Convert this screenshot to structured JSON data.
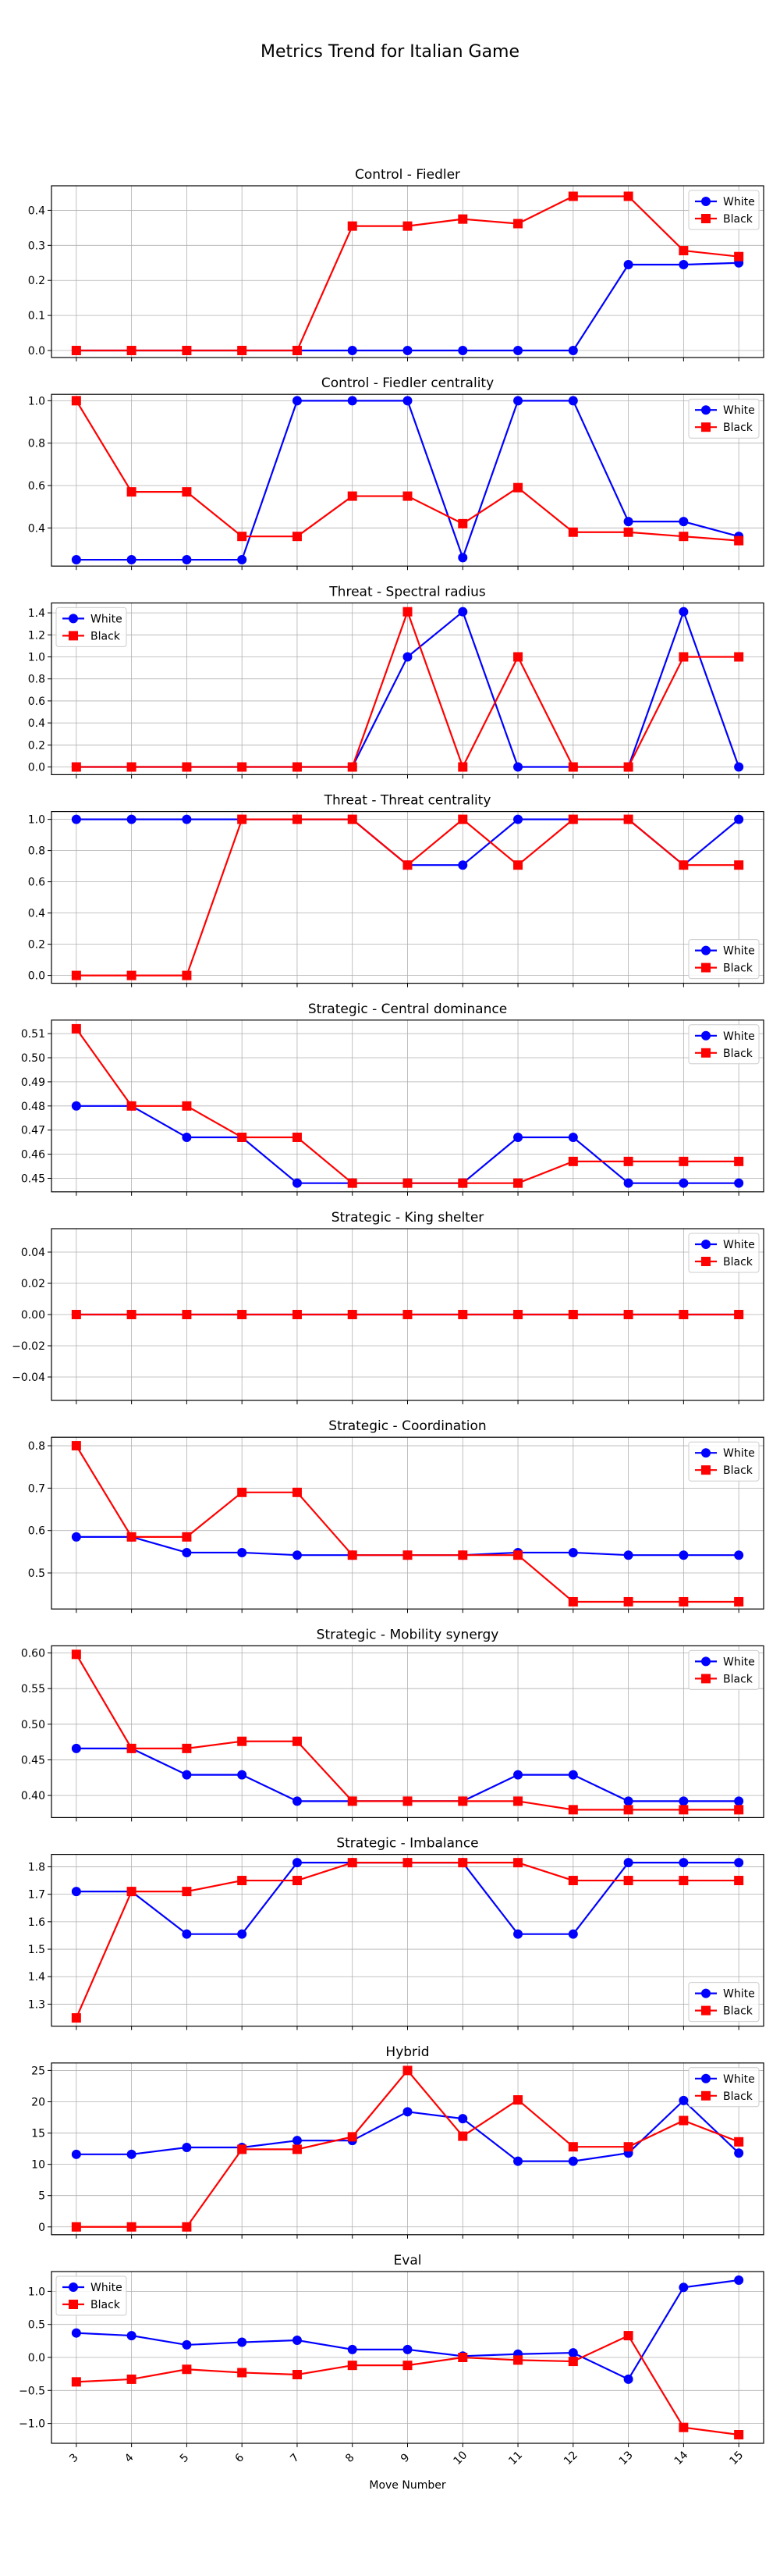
{
  "figure": {
    "title": "Metrics Trend for Italian Game",
    "xlabel": "Move Number"
  },
  "colors": {
    "White": "#0000ff",
    "Black": "#ff0000"
  },
  "x": [
    3,
    4,
    5,
    6,
    7,
    8,
    9,
    10,
    11,
    12,
    13,
    14,
    15
  ],
  "chart_data": [
    {
      "type": "line",
      "title": "Control - Fiedler",
      "grid": true,
      "legend": "upper-right",
      "ylim": [
        -0.02,
        0.47
      ],
      "yticks": [
        0.0,
        0.1,
        0.2,
        0.3,
        0.4
      ],
      "ytick_labels": [
        "0.0",
        "0.1",
        "0.2",
        "0.3",
        "0.4"
      ],
      "series": [
        {
          "name": "White",
          "marker": "circle",
          "values": [
            0,
            0,
            0,
            0,
            0,
            0,
            0,
            0,
            0,
            0,
            0.245,
            0.245,
            0.25
          ]
        },
        {
          "name": "Black",
          "marker": "square",
          "values": [
            0,
            0,
            0,
            0,
            0,
            0.355,
            0.355,
            0.375,
            0.362,
            0.44,
            0.44,
            0.285,
            0.268
          ]
        }
      ]
    },
    {
      "type": "line",
      "title": "Control - Fiedler centrality",
      "grid": true,
      "legend": "upper-right",
      "ylim": [
        0.22,
        1.03
      ],
      "yticks": [
        0.4,
        0.6,
        0.8,
        1.0
      ],
      "ytick_labels": [
        "0.4",
        "0.6",
        "0.8",
        "1.0"
      ],
      "series": [
        {
          "name": "White",
          "marker": "circle",
          "values": [
            0.25,
            0.25,
            0.25,
            0.25,
            1.0,
            1.0,
            1.0,
            0.26,
            1.0,
            1.0,
            0.43,
            0.43,
            0.36
          ]
        },
        {
          "name": "Black",
          "marker": "square",
          "values": [
            1.0,
            0.57,
            0.57,
            0.36,
            0.36,
            0.55,
            0.55,
            0.42,
            0.59,
            0.38,
            0.38,
            0.36,
            0.34
          ]
        }
      ]
    },
    {
      "type": "line",
      "title": "Threat - Spectral radius",
      "grid": true,
      "legend": "upper-left",
      "ylim": [
        -0.07,
        1.49
      ],
      "yticks": [
        0.0,
        0.2,
        0.4,
        0.6,
        0.8,
        1.0,
        1.2,
        1.4
      ],
      "ytick_labels": [
        "0.0",
        "0.2",
        "0.4",
        "0.6",
        "0.8",
        "1.0",
        "1.2",
        "1.4"
      ],
      "series": [
        {
          "name": "White",
          "marker": "circle",
          "values": [
            0,
            0,
            0,
            0,
            0,
            0,
            1.0,
            1.41,
            0,
            0,
            0,
            1.41,
            0
          ]
        },
        {
          "name": "Black",
          "marker": "square",
          "values": [
            0,
            0,
            0,
            0,
            0,
            0,
            1.41,
            0,
            1.0,
            0,
            0,
            1.0,
            1.0
          ]
        }
      ]
    },
    {
      "type": "line",
      "title": "Threat - Threat centrality",
      "grid": true,
      "legend": "lower-right",
      "ylim": [
        -0.05,
        1.05
      ],
      "yticks": [
        0.0,
        0.2,
        0.4,
        0.6,
        0.8,
        1.0
      ],
      "ytick_labels": [
        "0.0",
        "0.2",
        "0.4",
        "0.6",
        "0.8",
        "1.0"
      ],
      "series": [
        {
          "name": "White",
          "marker": "circle",
          "values": [
            1,
            1,
            1,
            1,
            1,
            1,
            0.707,
            0.707,
            1,
            1,
            1,
            0.707,
            1
          ]
        },
        {
          "name": "Black",
          "marker": "square",
          "values": [
            0,
            0,
            0,
            1,
            1,
            1,
            0.707,
            1,
            0.707,
            1,
            1,
            0.707,
            0.707
          ]
        }
      ]
    },
    {
      "type": "line",
      "title": "Strategic - Central dominance",
      "grid": true,
      "legend": "upper-right",
      "ylim": [
        0.4444,
        0.5156
      ],
      "yticks": [
        0.45,
        0.46,
        0.47,
        0.48,
        0.49,
        0.5,
        0.51
      ],
      "ytick_labels": [
        "0.45",
        "0.46",
        "0.47",
        "0.48",
        "0.49",
        "0.50",
        "0.51"
      ],
      "series": [
        {
          "name": "White",
          "marker": "circle",
          "values": [
            0.48,
            0.48,
            0.467,
            0.467,
            0.448,
            0.448,
            0.448,
            0.448,
            0.467,
            0.467,
            0.448,
            0.448,
            0.448
          ]
        },
        {
          "name": "Black",
          "marker": "square",
          "values": [
            0.512,
            0.48,
            0.48,
            0.467,
            0.467,
            0.448,
            0.448,
            0.448,
            0.448,
            0.457,
            0.457,
            0.457,
            0.457
          ]
        }
      ]
    },
    {
      "type": "line",
      "title": "Strategic - King shelter",
      "grid": true,
      "legend": "upper-right",
      "ylim": [
        -0.055,
        0.055
      ],
      "yticks": [
        -0.04,
        -0.02,
        0.0,
        0.02,
        0.04
      ],
      "ytick_labels": [
        "−0.04",
        "−0.02",
        "0.00",
        "0.02",
        "0.04"
      ],
      "series": [
        {
          "name": "White",
          "marker": "circle",
          "values": [
            0,
            0,
            0,
            0,
            0,
            0,
            0,
            0,
            0,
            0,
            0,
            0,
            0
          ]
        },
        {
          "name": "Black",
          "marker": "square",
          "values": [
            0,
            0,
            0,
            0,
            0,
            0,
            0,
            0,
            0,
            0,
            0,
            0,
            0
          ]
        }
      ]
    },
    {
      "type": "line",
      "title": "Strategic - Coordination",
      "grid": true,
      "legend": "upper-right",
      "ylim": [
        0.415,
        0.82
      ],
      "yticks": [
        0.5,
        0.6,
        0.7,
        0.8
      ],
      "ytick_labels": [
        "0.5",
        "0.6",
        "0.7",
        "0.8"
      ],
      "series": [
        {
          "name": "White",
          "marker": "circle",
          "values": [
            0.585,
            0.585,
            0.548,
            0.548,
            0.542,
            0.542,
            0.542,
            0.542,
            0.548,
            0.548,
            0.542,
            0.542,
            0.542
          ]
        },
        {
          "name": "Black",
          "marker": "square",
          "values": [
            0.8,
            0.585,
            0.585,
            0.69,
            0.69,
            0.542,
            0.542,
            0.542,
            0.542,
            0.432,
            0.432,
            0.432,
            0.432
          ]
        }
      ]
    },
    {
      "type": "line",
      "title": "Strategic - Mobility synergy",
      "grid": true,
      "legend": "upper-right",
      "ylim": [
        0.369,
        0.61
      ],
      "yticks": [
        0.4,
        0.45,
        0.5,
        0.55,
        0.6
      ],
      "ytick_labels": [
        "0.40",
        "0.45",
        "0.50",
        "0.55",
        "0.60"
      ],
      "series": [
        {
          "name": "White",
          "marker": "circle",
          "values": [
            0.466,
            0.466,
            0.429,
            0.429,
            0.392,
            0.392,
            0.392,
            0.392,
            0.429,
            0.429,
            0.392,
            0.392,
            0.392
          ]
        },
        {
          "name": "Black",
          "marker": "square",
          "values": [
            0.598,
            0.466,
            0.466,
            0.476,
            0.476,
            0.392,
            0.392,
            0.392,
            0.392,
            0.38,
            0.38,
            0.38,
            0.38
          ]
        }
      ]
    },
    {
      "type": "line",
      "title": "Strategic - Imbalance",
      "grid": true,
      "legend": "lower-right",
      "ylim": [
        1.22,
        1.845
      ],
      "yticks": [
        1.3,
        1.4,
        1.5,
        1.6,
        1.7,
        1.8
      ],
      "ytick_labels": [
        "1.3",
        "1.4",
        "1.5",
        "1.6",
        "1.7",
        "1.8"
      ],
      "series": [
        {
          "name": "White",
          "marker": "circle",
          "values": [
            1.71,
            1.71,
            1.555,
            1.555,
            1.815,
            1.815,
            1.815,
            1.815,
            1.555,
            1.555,
            1.815,
            1.815,
            1.815
          ]
        },
        {
          "name": "Black",
          "marker": "square",
          "values": [
            1.25,
            1.71,
            1.71,
            1.75,
            1.75,
            1.815,
            1.815,
            1.815,
            1.815,
            1.75,
            1.75,
            1.75,
            1.75
          ]
        }
      ]
    },
    {
      "type": "line",
      "title": "Hybrid",
      "grid": true,
      "legend": "upper-right",
      "ylim": [
        -1.25,
        26.2
      ],
      "yticks": [
        0,
        5,
        10,
        15,
        20,
        25
      ],
      "ytick_labels": [
        "0",
        "5",
        "10",
        "15",
        "20",
        "25"
      ],
      "series": [
        {
          "name": "White",
          "marker": "circle",
          "values": [
            11.6,
            11.6,
            12.7,
            12.7,
            13.8,
            13.8,
            18.4,
            17.3,
            10.5,
            10.5,
            11.8,
            20.2,
            11.8
          ]
        },
        {
          "name": "Black",
          "marker": "square",
          "values": [
            0,
            0,
            0,
            12.4,
            12.4,
            14.4,
            25,
            14.5,
            20.3,
            12.8,
            12.8,
            17.0,
            13.6
          ]
        }
      ]
    },
    {
      "type": "line",
      "title": "Eval",
      "grid": true,
      "legend": "upper-left",
      "ylim": [
        -1.3,
        1.3
      ],
      "yticks": [
        -1.0,
        -0.5,
        0.0,
        0.5,
        1.0
      ],
      "ytick_labels": [
        "−1.0",
        "−0.5",
        "0.0",
        "0.5",
        "1.0"
      ],
      "series": [
        {
          "name": "White",
          "marker": "circle",
          "values": [
            0.37,
            0.33,
            0.19,
            0.23,
            0.26,
            0.12,
            0.12,
            0.02,
            0.05,
            0.07,
            -0.33,
            1.06,
            1.17
          ]
        },
        {
          "name": "Black",
          "marker": "square",
          "values": [
            -0.37,
            -0.33,
            -0.18,
            -0.23,
            -0.26,
            -0.12,
            -0.12,
            0.0,
            -0.04,
            -0.06,
            0.33,
            -1.06,
            -1.17
          ]
        }
      ]
    }
  ]
}
